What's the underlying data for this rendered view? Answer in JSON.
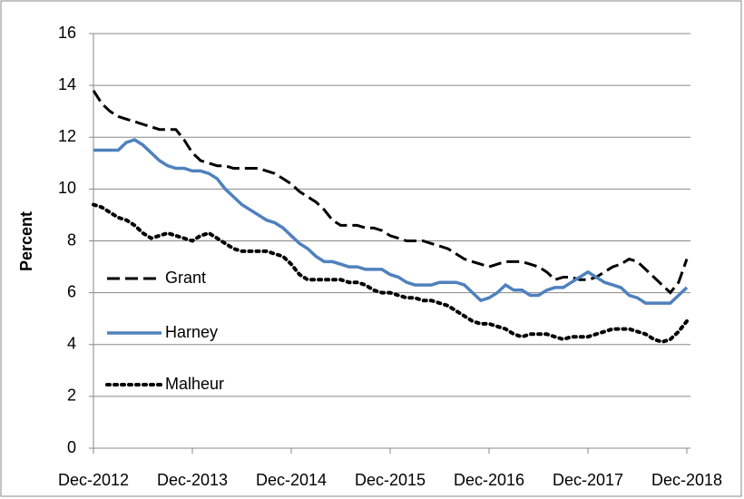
{
  "chart_data": {
    "type": "line",
    "y_label": "Percent",
    "categories": [
      "Dec-2012",
      null,
      null,
      null,
      null,
      null,
      null,
      null,
      null,
      null,
      null,
      null,
      "Dec-2013",
      null,
      null,
      null,
      null,
      null,
      null,
      null,
      null,
      null,
      null,
      null,
      "Dec-2014",
      null,
      null,
      null,
      null,
      null,
      null,
      null,
      null,
      null,
      null,
      null,
      "Dec-2015",
      null,
      null,
      null,
      null,
      null,
      null,
      null,
      null,
      null,
      null,
      null,
      "Dec-2016",
      null,
      null,
      null,
      null,
      null,
      null,
      null,
      null,
      null,
      null,
      null,
      "Dec-2017",
      null,
      null,
      null,
      null,
      null,
      null,
      null,
      null,
      null,
      null,
      null,
      "Dec-2018"
    ],
    "ylim": [
      0,
      16
    ],
    "yticks": [
      0,
      2,
      4,
      6,
      8,
      10,
      12,
      14,
      16
    ],
    "grid": true,
    "legend": "left",
    "series": [
      {
        "name": "Grant",
        "color": "#000000",
        "style": "dashed",
        "values": [
          13.8,
          13.3,
          13.0,
          12.8,
          12.7,
          12.6,
          12.5,
          12.4,
          12.3,
          12.3,
          12.3,
          11.9,
          11.4,
          11.1,
          11.0,
          10.9,
          10.9,
          10.8,
          10.8,
          10.8,
          10.8,
          10.7,
          10.6,
          10.4,
          10.2,
          9.9,
          9.7,
          9.5,
          9.2,
          8.8,
          8.6,
          8.6,
          8.6,
          8.5,
          8.5,
          8.4,
          8.2,
          8.1,
          8.0,
          8.0,
          8.0,
          7.9,
          7.8,
          7.7,
          7.5,
          7.3,
          7.2,
          7.1,
          7.0,
          7.1,
          7.2,
          7.2,
          7.2,
          7.1,
          7.0,
          6.8,
          6.5,
          6.6,
          6.6,
          6.5,
          6.5,
          6.6,
          6.8,
          7.0,
          7.1,
          7.3,
          7.2,
          6.9,
          6.6,
          6.3,
          6.0,
          6.4,
          7.3
        ]
      },
      {
        "name": "Harney",
        "color": "#4f81bd",
        "style": "solid",
        "values": [
          11.5,
          11.5,
          11.5,
          11.5,
          11.8,
          11.9,
          11.7,
          11.4,
          11.1,
          10.9,
          10.8,
          10.8,
          10.7,
          10.7,
          10.6,
          10.4,
          10.0,
          9.7,
          9.4,
          9.2,
          9.0,
          8.8,
          8.7,
          8.5,
          8.2,
          7.9,
          7.7,
          7.4,
          7.2,
          7.2,
          7.1,
          7.0,
          7.0,
          6.9,
          6.9,
          6.9,
          6.7,
          6.6,
          6.4,
          6.3,
          6.3,
          6.3,
          6.4,
          6.4,
          6.4,
          6.3,
          6.0,
          5.7,
          5.8,
          6.0,
          6.3,
          6.1,
          6.1,
          5.9,
          5.9,
          6.1,
          6.2,
          6.2,
          6.4,
          6.6,
          6.8,
          6.6,
          6.4,
          6.3,
          6.2,
          5.9,
          5.8,
          5.6,
          5.6,
          5.6,
          5.6,
          5.9,
          6.2
        ]
      },
      {
        "name": "Malheur",
        "color": "#000000",
        "style": "dotted",
        "values": [
          9.4,
          9.3,
          9.1,
          8.9,
          8.8,
          8.6,
          8.3,
          8.1,
          8.2,
          8.3,
          8.2,
          8.1,
          8.0,
          8.2,
          8.3,
          8.1,
          7.9,
          7.7,
          7.6,
          7.6,
          7.6,
          7.6,
          7.5,
          7.4,
          7.1,
          6.7,
          6.5,
          6.5,
          6.5,
          6.5,
          6.5,
          6.4,
          6.4,
          6.3,
          6.1,
          6.0,
          6.0,
          5.9,
          5.8,
          5.8,
          5.7,
          5.7,
          5.6,
          5.5,
          5.3,
          5.1,
          4.9,
          4.8,
          4.8,
          4.7,
          4.6,
          4.4,
          4.3,
          4.4,
          4.4,
          4.4,
          4.3,
          4.2,
          4.3,
          4.3,
          4.3,
          4.4,
          4.5,
          4.6,
          4.6,
          4.6,
          4.5,
          4.4,
          4.2,
          4.1,
          4.2,
          4.5,
          4.9
        ]
      }
    ]
  }
}
